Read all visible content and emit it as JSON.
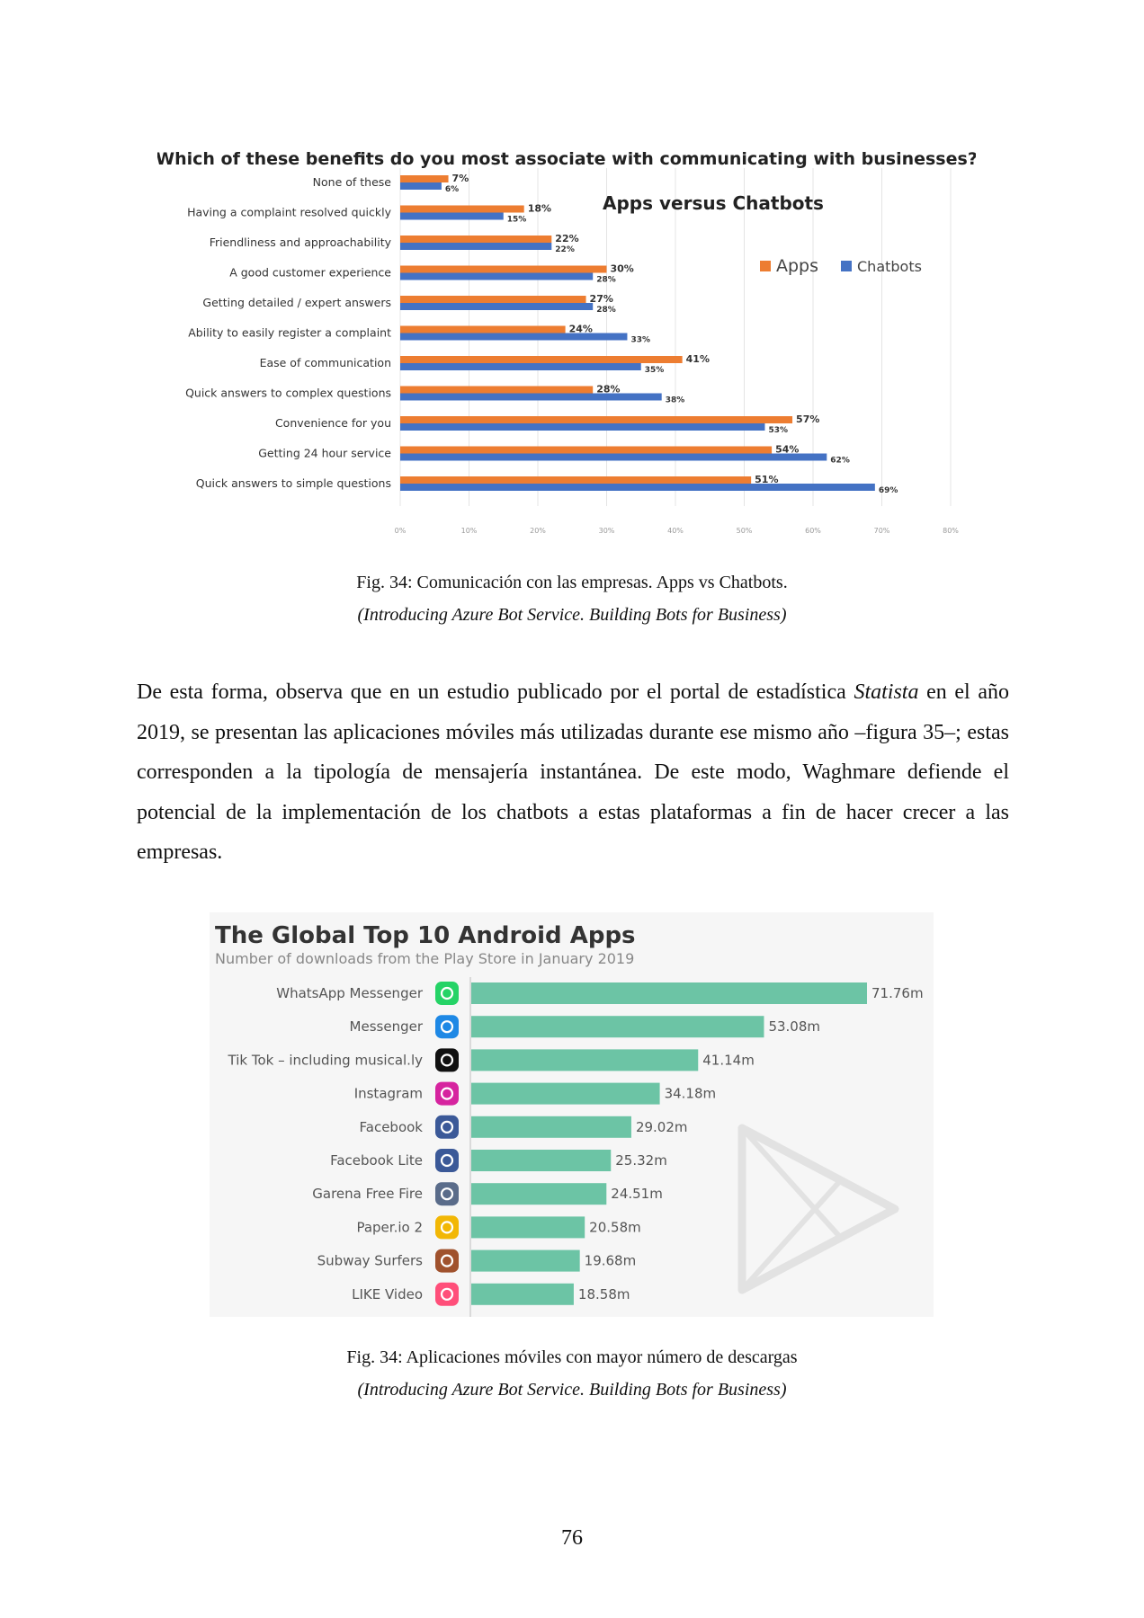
{
  "figure1": {
    "chart_data": {
      "type": "bar",
      "orientation": "horizontal",
      "title": "Which of these benefits do you most associate with communicating with businesses?",
      "inset_title": "Apps versus Chatbots",
      "categories": [
        "None of these",
        "Having a complaint resolved quickly",
        "Friendliness and approachability",
        "A good customer experience",
        "Getting detailed / expert answers",
        "Ability to easily register a complaint",
        "Ease of communication",
        "Quick answers to complex questions",
        "Convenience for you",
        "Getting 24 hour service",
        "Quick answers to simple questions"
      ],
      "series": [
        {
          "name": "Apps",
          "color": "#ed7d31",
          "values": [
            7,
            18,
            22,
            30,
            27,
            24,
            41,
            28,
            57,
            54,
            51
          ]
        },
        {
          "name": "Chatbots",
          "color": "#4472c4",
          "values": [
            6,
            15,
            22,
            28,
            28,
            33,
            35,
            38,
            53,
            62,
            69
          ]
        }
      ],
      "value_suffix": "%",
      "xlim": [
        0,
        80
      ],
      "x_ticks": [
        "0%",
        "10%",
        "20%",
        "30%",
        "40%",
        "50%",
        "60%",
        "70%",
        "80%"
      ],
      "grid": true,
      "legend_placement": "top-right"
    },
    "caption": "Fig. 34: Comunicación con las empresas. Apps vs Chatbots.",
    "source": "(Introducing Azure Bot Service. Building Bots for Business)"
  },
  "paragraph": {
    "before": "De esta forma, observa que en un estudio publicado por el portal de estadística ",
    "emphasis": "Statista",
    "after": " en el año 2019, se presentan las aplicaciones móviles más utilizadas durante ese mismo año –figura 35–; estas corresponden a la tipología de mensajería instantánea. De este modo, Waghmare defiende el potencial de la implementación de los chatbots a estas plataformas a fin de hacer crecer a las empresas."
  },
  "figure2": {
    "chart_data": {
      "type": "bar",
      "orientation": "horizontal",
      "title": "The Global Top 10 Android Apps",
      "subtitle": "Number of downloads from the Play Store in January 2019",
      "categories": [
        "WhatsApp Messenger",
        "Messenger",
        "Tik Tok – including musical.ly",
        "Instagram",
        "Facebook",
        "Facebook Lite",
        "Garena Free Fire",
        "Paper.io 2",
        "Subway Surfers",
        "LIKE Video"
      ],
      "values": [
        71.76,
        53.08,
        41.14,
        34.18,
        29.02,
        25.32,
        24.51,
        20.58,
        19.68,
        18.58
      ],
      "value_labels": [
        "71.76m",
        "53.08m",
        "41.14m",
        "34.18m",
        "29.02m",
        "25.32m",
        "24.51m",
        "20.58m",
        "19.68m",
        "18.58m"
      ],
      "bar_color": "#6cc4a5",
      "icons": [
        "whatsapp-icon",
        "messenger-icon",
        "tiktok-icon",
        "instagram-icon",
        "facebook-icon",
        "facebook-lite-icon",
        "free-fire-icon",
        "paper-io-icon",
        "subway-surfers-icon",
        "like-video-icon"
      ],
      "icon_colors": [
        "#25d366",
        "#1e88e5",
        "#111111",
        "#d6249f",
        "#3b5998",
        "#3b5998",
        "#5a6c8a",
        "#f2b705",
        "#a0522d",
        "#ff4f7a"
      ]
    },
    "caption": "Fig. 34: Aplicaciones móviles con mayor número de descargas",
    "source": "(Introducing Azure Bot Service. Building Bots for Business)"
  },
  "page_number": "76"
}
